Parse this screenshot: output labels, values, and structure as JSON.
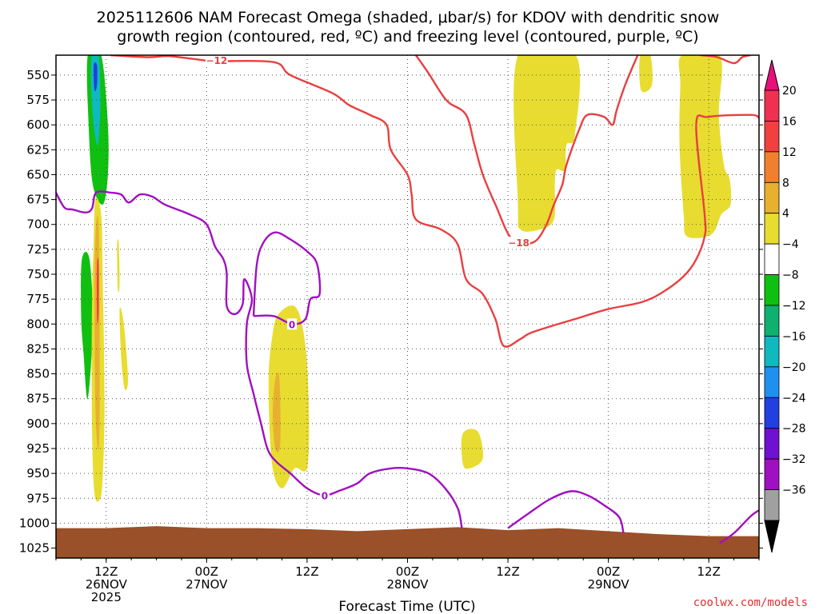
{
  "chart_data": {
    "type": "heatmap",
    "title_lines": [
      "2025112606 NAM Forecast Omega (shaded, μbar/s) for KDOV with dendritic snow",
      "growth region (contoured, red, ºC) and freezing level (contoured, purple, ºC)"
    ],
    "xlabel": "Forecast Time (UTC)",
    "credit": "coolwx.com/models",
    "x_range_hours": [
      0,
      84
    ],
    "x_ticks": [
      {
        "hour": 6,
        "l1": "12Z",
        "l2": "26NOV",
        "l3": "2025"
      },
      {
        "hour": 18,
        "l1": "00Z",
        "l2": "27NOV",
        "l3": ""
      },
      {
        "hour": 30,
        "l1": "12Z",
        "l2": "",
        "l3": ""
      },
      {
        "hour": 42,
        "l1": "00Z",
        "l2": "28NOV",
        "l3": ""
      },
      {
        "hour": 54,
        "l1": "12Z",
        "l2": "",
        "l3": ""
      },
      {
        "hour": 66,
        "l1": "00Z",
        "l2": "29NOV",
        "l3": ""
      },
      {
        "hour": 78,
        "l1": "12Z",
        "l2": "",
        "l3": ""
      }
    ],
    "y_range_hpa": [
      530,
      1035
    ],
    "y_ticks": [
      550,
      575,
      600,
      625,
      650,
      675,
      700,
      725,
      750,
      775,
      800,
      825,
      850,
      875,
      900,
      925,
      950,
      975,
      1000,
      1025
    ],
    "grid": true,
    "colorbar": {
      "labels": [
        "20",
        "16",
        "12",
        "8",
        "4",
        "−4",
        "−8",
        "−12",
        "−16",
        "−20",
        "−24",
        "−28",
        "−32",
        "−36"
      ],
      "colors": [
        "#f03050",
        "#f04040",
        "#f08030",
        "#e8b030",
        "#e8dc30",
        "#ffffff",
        "#10c010",
        "#10b070",
        "#10b8c0",
        "#2090f0",
        "#2040e0",
        "#7010d0",
        "#a010c0",
        "#a0a0a0"
      ],
      "top_color": "#e8107a",
      "bottom_color": "#000000"
    },
    "shaded_regions": [
      {
        "name": "ascent-26nov-upper",
        "color": "#10c010",
        "points": [
          [
            3.8,
            530
          ],
          [
            5.4,
            530
          ],
          [
            6.2,
            600
          ],
          [
            6.2,
            650
          ],
          [
            5.6,
            680
          ],
          [
            4.4,
            660
          ],
          [
            3.9,
            600
          ]
        ]
      },
      {
        "name": "ascent-26nov-upper-core",
        "color": "#10b8c0",
        "points": [
          [
            4.3,
            530
          ],
          [
            5.1,
            530
          ],
          [
            5.3,
            580
          ],
          [
            5.0,
            620
          ],
          [
            4.5,
            600
          ],
          [
            4.2,
            560
          ]
        ]
      },
      {
        "name": "ascent-26nov-upper-peak",
        "color": "#2040e0",
        "points": [
          [
            4.5,
            540
          ],
          [
            4.9,
            540
          ],
          [
            4.9,
            560
          ],
          [
            4.6,
            565
          ]
        ]
      },
      {
        "name": "ascent-26nov-lower",
        "color": "#10c010",
        "points": [
          [
            3.1,
            735
          ],
          [
            4.0,
            735
          ],
          [
            4.4,
            800
          ],
          [
            3.8,
            875
          ],
          [
            3.3,
            830
          ],
          [
            3.0,
            790
          ]
        ]
      },
      {
        "name": "descent-26nov",
        "color": "#e8dc30",
        "points": [
          [
            4.7,
            675
          ],
          [
            5.4,
            690
          ],
          [
            5.6,
            760
          ],
          [
            5.8,
            880
          ],
          [
            5.6,
            950
          ],
          [
            5.3,
            975
          ],
          [
            4.6,
            970
          ],
          [
            4.3,
            900
          ],
          [
            4.3,
            780
          ],
          [
            4.5,
            720
          ]
        ]
      },
      {
        "name": "descent-26nov-core",
        "color": "#e8b030",
        "points": [
          [
            4.8,
            700
          ],
          [
            5.1,
            700
          ],
          [
            5.2,
            780
          ],
          [
            5.2,
            900
          ],
          [
            5.0,
            925
          ],
          [
            4.7,
            880
          ],
          [
            4.6,
            760
          ]
        ]
      },
      {
        "name": "descent-26nov-peak",
        "color": "#f04040",
        "points": [
          [
            4.9,
            740
          ],
          [
            5.1,
            740
          ],
          [
            5.1,
            790
          ],
          [
            4.9,
            795
          ]
        ]
      },
      {
        "name": "descent-26nov-side",
        "color": "#e8dc30",
        "points": [
          [
            7.3,
            720
          ],
          [
            7.5,
            720
          ],
          [
            7.6,
            760
          ],
          [
            7.4,
            765
          ]
        ]
      },
      {
        "name": "descent-26nov-side2",
        "color": "#e8dc30",
        "points": [
          [
            7.6,
            785
          ],
          [
            8.1,
            800
          ],
          [
            8.6,
            855
          ],
          [
            8.2,
            865
          ],
          [
            7.8,
            835
          ]
        ]
      },
      {
        "name": "descent-27nov",
        "color": "#e8dc30",
        "points": [
          [
            26.6,
            790
          ],
          [
            28.8,
            785
          ],
          [
            30.0,
            840
          ],
          [
            30.1,
            940
          ],
          [
            28.5,
            945
          ],
          [
            27.0,
            965
          ],
          [
            25.8,
            940
          ],
          [
            25.4,
            860
          ],
          [
            25.8,
            815
          ]
        ]
      },
      {
        "name": "descent-27nov-core",
        "color": "#e8b030",
        "points": [
          [
            26.2,
            855
          ],
          [
            26.7,
            855
          ],
          [
            26.8,
            920
          ],
          [
            26.2,
            925
          ],
          [
            25.9,
            890
          ]
        ]
      },
      {
        "name": "descent-28nov",
        "color": "#e8dc30",
        "points": [
          [
            48.6,
            910
          ],
          [
            50.4,
            908
          ],
          [
            51.0,
            935
          ],
          [
            49.4,
            945
          ],
          [
            48.6,
            940
          ]
        ]
      },
      {
        "name": "descent-29nov-a",
        "color": "#e8dc30",
        "points": [
          [
            55.2,
            530
          ],
          [
            62.1,
            530
          ],
          [
            62.0,
            610
          ],
          [
            61.0,
            620
          ],
          [
            60.8,
            645
          ],
          [
            59.8,
            645
          ],
          [
            59.6,
            660
          ],
          [
            59.5,
            695
          ],
          [
            57.8,
            705
          ],
          [
            55.5,
            705
          ],
          [
            55.2,
            680
          ]
        ]
      },
      {
        "name": "descent-29nov-b",
        "color": "#e8dc30",
        "points": [
          [
            69.8,
            530
          ],
          [
            71.0,
            530
          ],
          [
            71.2,
            560
          ],
          [
            69.9,
            565
          ]
        ]
      },
      {
        "name": "descent-29nov-c",
        "color": "#e8dc30",
        "points": [
          [
            74.8,
            530
          ],
          [
            79.3,
            530
          ],
          [
            79.2,
            590
          ],
          [
            79.8,
            640
          ],
          [
            80.5,
            655
          ],
          [
            80.6,
            680
          ],
          [
            79.5,
            690
          ],
          [
            78.3,
            710
          ],
          [
            75.4,
            712
          ],
          [
            75.0,
            690
          ],
          [
            74.5,
            620
          ],
          [
            74.6,
            560
          ]
        ]
      }
    ],
    "terrain": {
      "color": "#9a5028",
      "top_hpa": [
        [
          0,
          1005
        ],
        [
          6,
          1005
        ],
        [
          12,
          1003
        ],
        [
          18,
          1005
        ],
        [
          24,
          1005
        ],
        [
          30,
          1006
        ],
        [
          36,
          1008
        ],
        [
          42,
          1006
        ],
        [
          48,
          1004
        ],
        [
          54,
          1007
        ],
        [
          60,
          1005
        ],
        [
          66,
          1008
        ],
        [
          72,
          1011
        ],
        [
          78,
          1013
        ],
        [
          84,
          1013
        ]
      ]
    },
    "contours": [
      {
        "name": "snow-growth-minus12",
        "color": "#e84040",
        "label": "−12",
        "label_at": [
          19.2,
          535
        ],
        "points": [
          [
            6.5,
            530
          ],
          [
            11.0,
            532
          ],
          [
            13.5,
            531
          ],
          [
            17.5,
            535
          ],
          [
            19.0,
            536
          ],
          [
            26.0,
            537
          ],
          [
            28.0,
            550
          ],
          [
            33.0,
            568
          ],
          [
            35.0,
            580
          ],
          [
            37.5,
            590
          ],
          [
            39.5,
            600
          ],
          [
            40.0,
            625
          ],
          [
            42.0,
            650
          ],
          [
            42.5,
            670
          ],
          [
            43.0,
            695
          ],
          [
            46.0,
            705
          ],
          [
            48.0,
            720
          ],
          [
            49.0,
            755
          ],
          [
            51.0,
            770
          ],
          [
            52.5,
            795
          ],
          [
            53.5,
            822
          ],
          [
            55.5,
            815
          ],
          [
            57.0,
            808
          ],
          [
            62.0,
            795
          ],
          [
            66.0,
            785
          ],
          [
            70.0,
            778
          ],
          [
            72.5,
            768
          ],
          [
            75.0,
            752
          ],
          [
            76.5,
            735
          ],
          [
            77.5,
            712
          ],
          [
            77.5,
            690
          ],
          [
            76.5,
            600
          ],
          [
            78.0,
            592
          ],
          [
            83.0,
            590
          ],
          [
            84.0,
            593
          ]
        ]
      },
      {
        "name": "snow-growth-minus18",
        "color": "#e84040",
        "label": "−18",
        "label_at": [
          55.3,
          718
        ],
        "points": [
          [
            43.0,
            530
          ],
          [
            44.5,
            548
          ],
          [
            46.0,
            568
          ],
          [
            47.0,
            578
          ],
          [
            49.0,
            590
          ],
          [
            50.0,
            620
          ],
          [
            51.0,
            650
          ],
          [
            52.5,
            680
          ],
          [
            54.5,
            715
          ],
          [
            57.0,
            718
          ],
          [
            58.5,
            702
          ],
          [
            59.5,
            680
          ],
          [
            60.5,
            660
          ],
          [
            61.0,
            640
          ],
          [
            62.5,
            605
          ],
          [
            63.5,
            590
          ],
          [
            65.5,
            592
          ],
          [
            66.5,
            600
          ],
          [
            67.0,
            585
          ],
          [
            68.0,
            560
          ],
          [
            69.5,
            530
          ]
        ]
      },
      {
        "name": "snow-growth-upper-right",
        "color": "#e84040",
        "label": "",
        "points": [
          [
            77.0,
            530
          ],
          [
            79.0,
            532
          ],
          [
            81.0,
            538
          ],
          [
            82.0,
            532
          ],
          [
            83.0,
            530
          ]
        ]
      },
      {
        "name": "freezing-level-main",
        "color": "#a010c0",
        "label": "0",
        "label_at": [
          32.1,
          972
        ],
        "points": [
          [
            0,
            668
          ],
          [
            1.0,
            683
          ],
          [
            2.0,
            685
          ],
          [
            3.5,
            688
          ],
          [
            4.3,
            684
          ],
          [
            4.8,
            668
          ],
          [
            6.5,
            668
          ],
          [
            7.8,
            670
          ],
          [
            8.7,
            678
          ],
          [
            10.0,
            670
          ],
          [
            11.5,
            672
          ],
          [
            13.0,
            680
          ],
          [
            16.0,
            690
          ],
          [
            18.0,
            700
          ],
          [
            19.0,
            722
          ],
          [
            20.0,
            735
          ],
          [
            20.4,
            750
          ],
          [
            20.4,
            782
          ],
          [
            21.4,
            790
          ],
          [
            22.3,
            780
          ],
          [
            22.5,
            755
          ],
          [
            23.4,
            775
          ],
          [
            22.8,
            800
          ],
          [
            22.8,
            840
          ],
          [
            23.6,
            870
          ],
          [
            24.5,
            900
          ],
          [
            25.3,
            926
          ],
          [
            26.3,
            938
          ],
          [
            28.0,
            950
          ],
          [
            30.0,
            965
          ],
          [
            32.0,
            972
          ],
          [
            34.0,
            967
          ],
          [
            36.0,
            960
          ],
          [
            37.5,
            950
          ],
          [
            40.0,
            945
          ],
          [
            42.0,
            945
          ],
          [
            44.5,
            950
          ],
          [
            46.5,
            965
          ],
          [
            48.0,
            985
          ],
          [
            48.5,
            1005
          ]
        ]
      },
      {
        "name": "freezing-level-loop",
        "color": "#a010c0",
        "label": "0",
        "label_at": [
          28.2,
          800
        ],
        "points": [
          [
            23.6,
            792
          ],
          [
            24.0,
            740
          ],
          [
            24.8,
            718
          ],
          [
            26.2,
            708
          ],
          [
            28.0,
            715
          ],
          [
            30.0,
            727
          ],
          [
            31.2,
            740
          ],
          [
            31.5,
            770
          ],
          [
            30.4,
            775
          ],
          [
            29.8,
            795
          ],
          [
            28.2,
            800
          ],
          [
            26.0,
            792
          ],
          [
            23.6,
            792
          ]
        ]
      },
      {
        "name": "freezing-level-29nov",
        "color": "#a010c0",
        "label": "",
        "points": [
          [
            54.0,
            1005
          ],
          [
            56.5,
            990
          ],
          [
            59.0,
            976
          ],
          [
            61.5,
            968
          ],
          [
            63.5,
            972
          ],
          [
            65.5,
            982
          ],
          [
            67.3,
            994
          ],
          [
            67.8,
            1010
          ]
        ]
      },
      {
        "name": "freezing-level-right",
        "color": "#a010c0",
        "label": "",
        "points": [
          [
            79.3,
            1020
          ],
          [
            81.0,
            1010
          ],
          [
            83.0,
            993
          ],
          [
            84.0,
            987
          ]
        ]
      }
    ]
  }
}
